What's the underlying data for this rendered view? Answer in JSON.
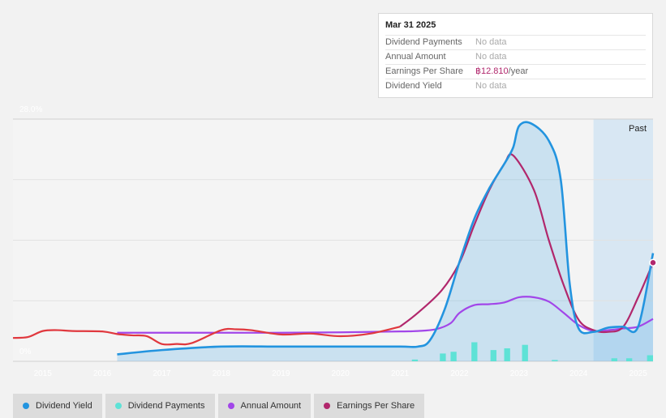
{
  "tooltip": {
    "date": "Mar 31 2025",
    "rows": [
      {
        "label": "Dividend Payments",
        "value": "No data"
      },
      {
        "label": "Annual Amount",
        "value": "No data"
      },
      {
        "label": "Earnings Per Share",
        "value": "฿12.810",
        "unit": "/year"
      },
      {
        "label": "Dividend Yield",
        "value": "No data"
      }
    ]
  },
  "legend": [
    {
      "label": "Dividend Yield",
      "color": "#2394df"
    },
    {
      "label": "Dividend Payments",
      "color": "#5ee2d6"
    },
    {
      "label": "Annual Amount",
      "color": "#a246e9"
    },
    {
      "label": "Earnings Per Share",
      "color": "#b1276c"
    }
  ],
  "chart_data": {
    "type": "line",
    "ylabel_top": "28.0%",
    "ylabel_bottom": "0%",
    "ylim": [
      0,
      28
    ],
    "xlim": [
      2014.5,
      2025.25
    ],
    "x_ticks": [
      "2015",
      "2016",
      "2017",
      "2018",
      "2019",
      "2020",
      "2021",
      "2022",
      "2023",
      "2024",
      "2025"
    ],
    "past_label": "Past",
    "past_start": 2024.25,
    "colors": {
      "yield": "#2394df",
      "payments": "#5ee2d6",
      "annual": "#a246e9",
      "eps": "#b1276c",
      "eps_early": "#e0383e"
    },
    "series": [
      {
        "name": "Dividend Yield",
        "key": "yield",
        "unit": "%",
        "points": [
          [
            2016.25,
            0.8
          ],
          [
            2017.0,
            1.3
          ],
          [
            2018.0,
            1.7
          ],
          [
            2019.0,
            1.7
          ],
          [
            2020.0,
            1.7
          ],
          [
            2021.0,
            1.7
          ],
          [
            2021.3,
            1.7
          ],
          [
            2021.5,
            2.4
          ],
          [
            2021.75,
            6.0
          ],
          [
            2022.0,
            11.5
          ],
          [
            2022.25,
            16.5
          ],
          [
            2022.5,
            20.0
          ],
          [
            2022.75,
            22.8
          ],
          [
            2022.9,
            24.7
          ],
          [
            2023.0,
            27.2
          ],
          [
            2023.2,
            27.5
          ],
          [
            2023.5,
            25.5
          ],
          [
            2023.7,
            21.0
          ],
          [
            2023.85,
            9.0
          ],
          [
            2024.0,
            3.8
          ],
          [
            2024.25,
            3.4
          ],
          [
            2024.5,
            3.9
          ],
          [
            2024.75,
            4.0
          ],
          [
            2025.0,
            4.0
          ],
          [
            2025.25,
            12.5
          ]
        ]
      },
      {
        "name": "Annual Amount",
        "key": "annual",
        "unit": "฿",
        "points": [
          [
            2016.25,
            3.3
          ],
          [
            2017.0,
            3.3
          ],
          [
            2018.0,
            3.3
          ],
          [
            2019.0,
            3.3
          ],
          [
            2020.0,
            3.35
          ],
          [
            2021.0,
            3.45
          ],
          [
            2021.3,
            3.5
          ],
          [
            2021.6,
            3.7
          ],
          [
            2021.85,
            4.4
          ],
          [
            2022.0,
            5.6
          ],
          [
            2022.25,
            6.5
          ],
          [
            2022.5,
            6.6
          ],
          [
            2022.75,
            6.8
          ],
          [
            2023.0,
            7.4
          ],
          [
            2023.25,
            7.4
          ],
          [
            2023.5,
            6.9
          ],
          [
            2023.75,
            5.6
          ],
          [
            2024.0,
            4.2
          ],
          [
            2024.25,
            3.5
          ],
          [
            2024.5,
            3.6
          ],
          [
            2024.75,
            3.8
          ],
          [
            2025.0,
            4.0
          ],
          [
            2025.25,
            4.9
          ]
        ]
      },
      {
        "name": "Earnings Per Share",
        "key": "eps",
        "unit": "฿",
        "points": [
          [
            2014.5,
            2.7
          ],
          [
            2014.75,
            2.8
          ],
          [
            2015.0,
            3.5
          ],
          [
            2015.25,
            3.6
          ],
          [
            2015.5,
            3.5
          ],
          [
            2016.0,
            3.45
          ],
          [
            2016.25,
            3.15
          ],
          [
            2016.5,
            3.0
          ],
          [
            2016.75,
            2.9
          ],
          [
            2017.0,
            2.0
          ],
          [
            2017.25,
            2.0
          ],
          [
            2017.5,
            2.1
          ],
          [
            2018.0,
            3.6
          ],
          [
            2018.25,
            3.7
          ],
          [
            2018.5,
            3.6
          ],
          [
            2019.0,
            3.1
          ],
          [
            2019.5,
            3.2
          ],
          [
            2020.0,
            2.9
          ],
          [
            2020.5,
            3.2
          ],
          [
            2021.0,
            4.0
          ],
          [
            2021.3,
            5.6
          ],
          [
            2021.7,
            8.2
          ],
          [
            2022.0,
            11.4
          ],
          [
            2022.25,
            15.8
          ],
          [
            2022.5,
            19.8
          ],
          [
            2022.75,
            22.8
          ],
          [
            2022.9,
            23.8
          ],
          [
            2023.25,
            19.8
          ],
          [
            2023.5,
            14.0
          ],
          [
            2023.75,
            8.8
          ],
          [
            2024.0,
            4.8
          ],
          [
            2024.25,
            3.6
          ],
          [
            2024.5,
            3.4
          ],
          [
            2024.75,
            4.0
          ],
          [
            2025.0,
            7.4
          ],
          [
            2025.25,
            11.4
          ]
        ]
      }
    ],
    "bars": {
      "name": "Dividend Payments",
      "key": "payments",
      "width_years": 0.1,
      "values": [
        [
          2021.25,
          0.2
        ],
        [
          2021.72,
          0.9
        ],
        [
          2021.9,
          1.1
        ],
        [
          2022.25,
          2.2
        ],
        [
          2022.57,
          1.3
        ],
        [
          2022.8,
          1.5
        ],
        [
          2023.1,
          1.9
        ],
        [
          2023.6,
          0.15
        ],
        [
          2024.6,
          0.35
        ],
        [
          2024.85,
          0.35
        ],
        [
          2025.2,
          0.7
        ]
      ]
    },
    "highlight_point": {
      "series": "eps",
      "x": 2025.25,
      "y": 11.4
    }
  }
}
